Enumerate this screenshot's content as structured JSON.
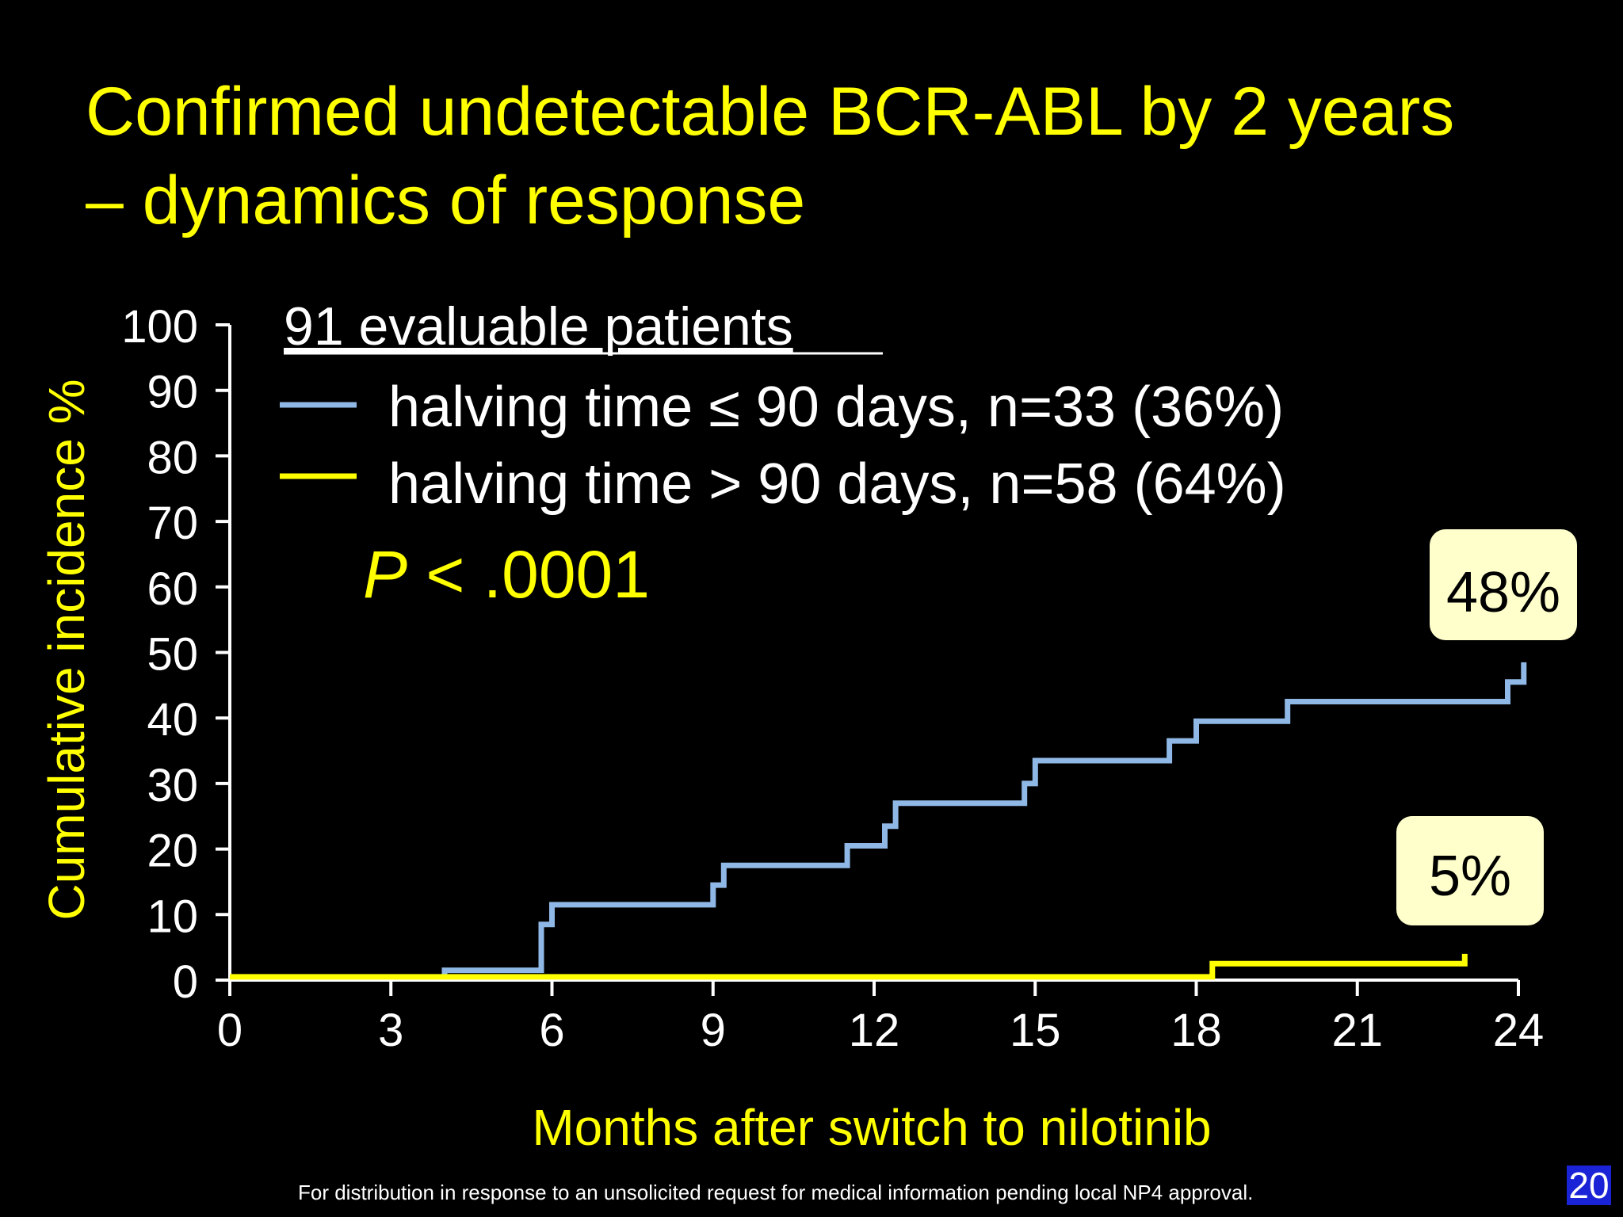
{
  "slide": {
    "title_line1": "Confirmed undetectable BCR-ABL by 2 years",
    "title_line2": "– dynamics of response",
    "footnote": "For distribution in response to an unsolicited request for medical information pending local NP4 approval.",
    "page_number": "20"
  },
  "chart_data": {
    "type": "line",
    "step": true,
    "title": "",
    "xlabel": "Months after switch to nilotinib",
    "ylabel": "Cumulative incidence %",
    "xlim": [
      0,
      24
    ],
    "ylim": [
      0,
      100
    ],
    "x_ticks": [
      0,
      3,
      6,
      9,
      12,
      15,
      18,
      21,
      24
    ],
    "y_ticks": [
      0,
      10,
      20,
      30,
      40,
      50,
      60,
      70,
      80,
      90,
      100
    ],
    "legend_header": "91 evaluable patients",
    "annotation_p_italic": "P",
    "annotation_p_rest": " < .0001",
    "grid": false,
    "legend_position": "top-left",
    "series": [
      {
        "name": "halving time ≤ 90 days, n=33 (36%)",
        "color": "#8fb8e6",
        "final_label": "48%",
        "x": [
          4.0,
          4.0,
          5.8,
          5.8,
          6.0,
          6.0,
          9.0,
          9.0,
          9.2,
          9.2,
          11.5,
          11.5,
          12.2,
          12.2,
          12.4,
          12.4,
          14.8,
          14.8,
          15.0,
          15.0,
          17.5,
          17.5,
          18.0,
          18.0,
          19.7,
          19.7,
          23.8,
          23.8,
          24.1,
          24.1
        ],
        "y": [
          0.5,
          1.5,
          1.5,
          8.5,
          8.5,
          11.5,
          11.5,
          14.5,
          14.5,
          17.5,
          17.5,
          20.5,
          20.5,
          23.5,
          23.5,
          27,
          27,
          30,
          30,
          33.5,
          33.5,
          36.5,
          36.5,
          39.5,
          39.5,
          42.5,
          42.5,
          45.5,
          45.5,
          48.5
        ]
      },
      {
        "name": "halving time > 90 days, n=58 (64%)",
        "color": "#ffff00",
        "final_label": "5%",
        "x": [
          0,
          18.3,
          18.3,
          23.0,
          23.0
        ],
        "y": [
          0.5,
          0.5,
          2.5,
          2.5,
          4.0
        ]
      }
    ]
  }
}
